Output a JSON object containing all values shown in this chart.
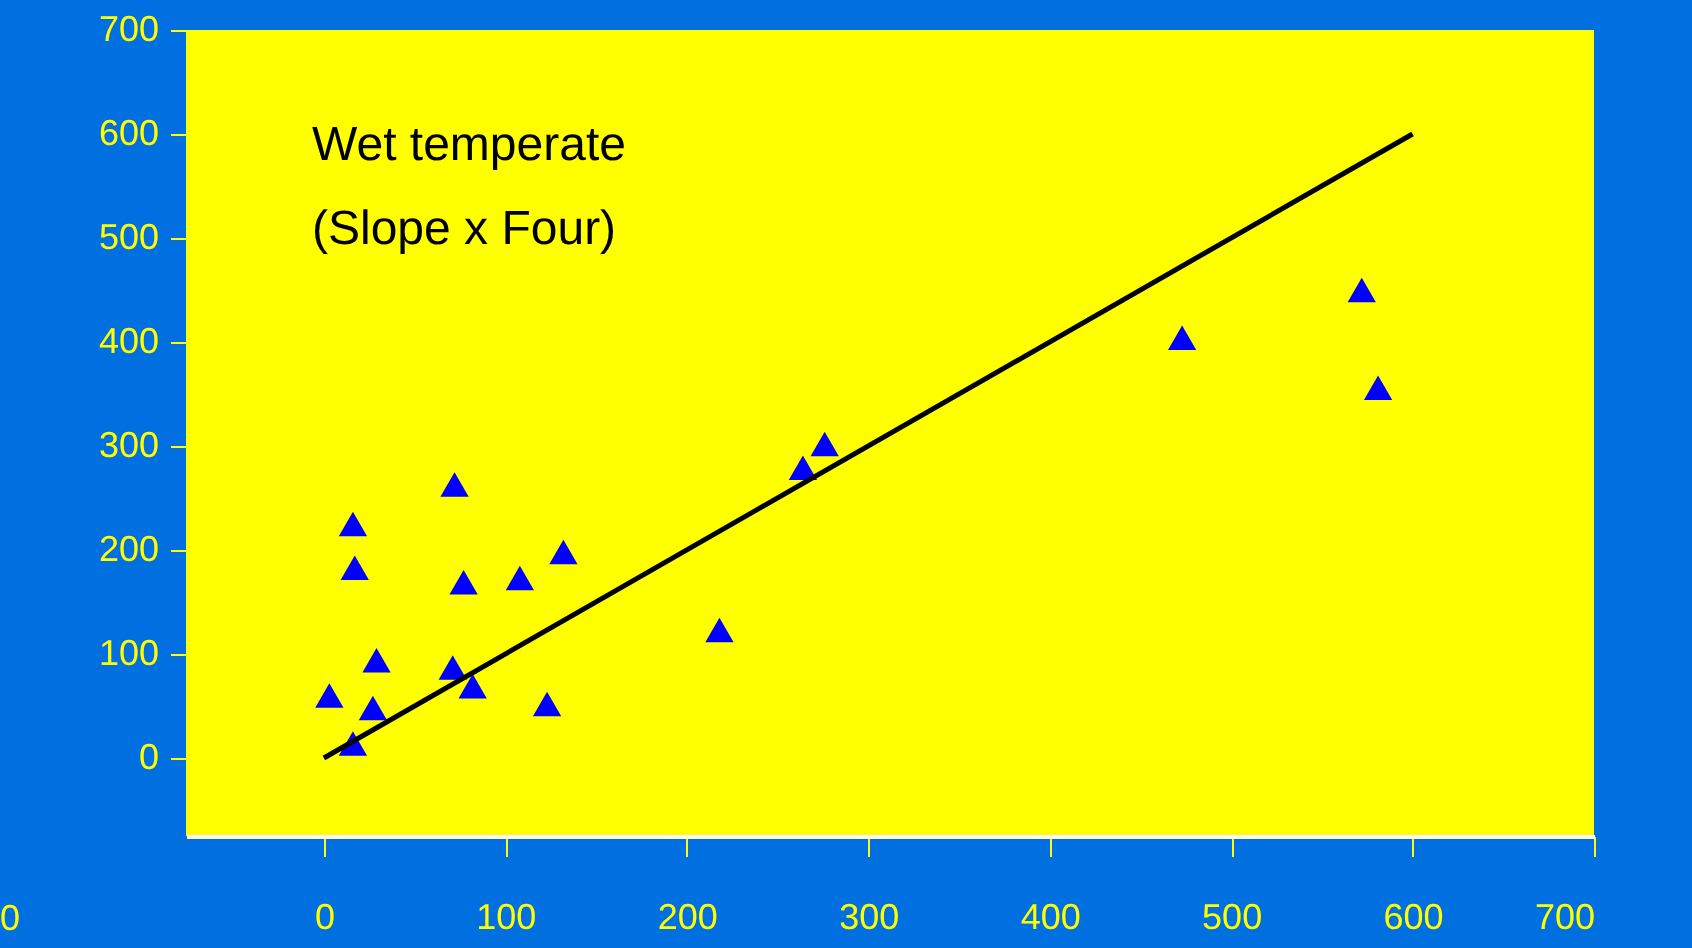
{
  "chart_data": {
    "type": "scatter",
    "annotations": [
      "Wet temperate",
      "(Slope x Four)",
      "0"
    ],
    "xlim": [
      -76,
      700
    ],
    "ylim": [
      -75,
      700
    ],
    "xticks": [
      0,
      100,
      200,
      300,
      400,
      500,
      600,
      700
    ],
    "yticks": [
      0,
      100,
      200,
      300,
      400,
      500,
      600,
      700
    ],
    "grid": false,
    "series": [
      {
        "color": "#0000ff",
        "marker": "triangle",
        "x": [
          16,
          3,
          27,
          29,
          16,
          17,
          72,
          77,
          71,
          82,
          108,
          132,
          123,
          218,
          264,
          276,
          473,
          572,
          581
        ],
        "values": [
          14,
          60,
          48,
          94,
          225,
          183,
          263,
          169,
          87,
          69,
          173,
          198,
          52,
          123,
          279,
          302,
          404,
          450,
          356
        ]
      },
      {
        "type": "line",
        "color": "#000000",
        "line_style": "solid",
        "x": [
          0,
          600
        ],
        "values": [
          0,
          600
        ]
      }
    ]
  }
}
